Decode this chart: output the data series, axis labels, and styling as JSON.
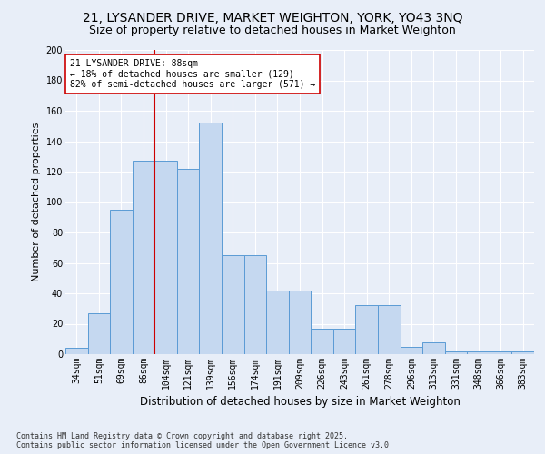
{
  "title_line1": "21, LYSANDER DRIVE, MARKET WEIGHTON, YORK, YO43 3NQ",
  "title_line2": "Size of property relative to detached houses in Market Weighton",
  "xlabel": "Distribution of detached houses by size in Market Weighton",
  "ylabel": "Number of detached properties",
  "categories": [
    "34sqm",
    "51sqm",
    "69sqm",
    "86sqm",
    "104sqm",
    "121sqm",
    "139sqm",
    "156sqm",
    "174sqm",
    "191sqm",
    "209sqm",
    "226sqm",
    "243sqm",
    "261sqm",
    "278sqm",
    "296sqm",
    "313sqm",
    "331sqm",
    "348sqm",
    "366sqm",
    "383sqm"
  ],
  "values": [
    4,
    27,
    95,
    127,
    127,
    122,
    152,
    65,
    65,
    42,
    42,
    17,
    17,
    32,
    32,
    5,
    8,
    2,
    2,
    2,
    2
  ],
  "bar_color": "#c5d8f0",
  "bar_edge_color": "#5b9bd5",
  "vline_color": "#cc0000",
  "vline_pos": 3,
  "annotation_title": "21 LYSANDER DRIVE: 88sqm",
  "annotation_line1": "← 18% of detached houses are smaller (129)",
  "annotation_line2": "82% of semi-detached houses are larger (571) →",
  "annotation_box_color": "#ffffff",
  "annotation_box_edge": "#cc0000",
  "ylim": [
    0,
    200
  ],
  "yticks": [
    0,
    20,
    40,
    60,
    80,
    100,
    120,
    140,
    160,
    180,
    200
  ],
  "bg_color": "#e8eef8",
  "grid_color": "#ffffff",
  "footer": "Contains HM Land Registry data © Crown copyright and database right 2025.\nContains public sector information licensed under the Open Government Licence v3.0.",
  "title_fontsize": 10,
  "subtitle_fontsize": 9,
  "tick_fontsize": 7,
  "ylabel_fontsize": 8,
  "xlabel_fontsize": 8.5,
  "annotation_fontsize": 7,
  "footer_fontsize": 6
}
